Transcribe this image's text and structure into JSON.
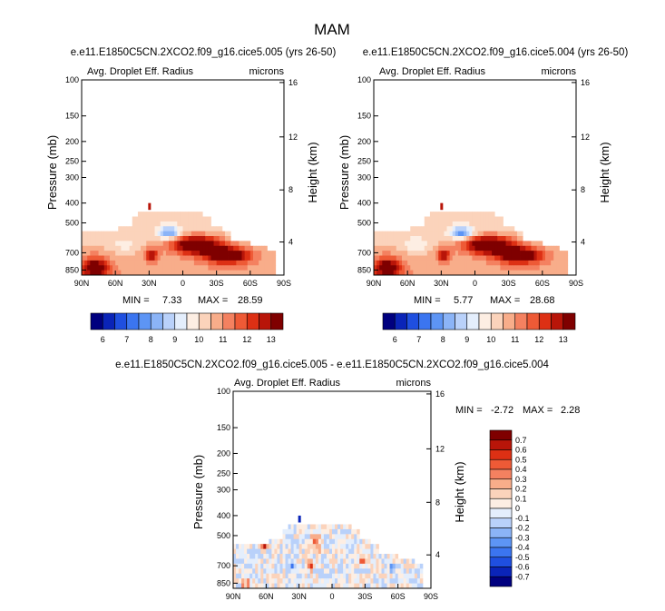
{
  "figure_title": "MAM",
  "colors": {
    "palette": [
      "#00007f",
      "#0a24b8",
      "#1f4fe0",
      "#3b75f0",
      "#5d95f5",
      "#8bb4f7",
      "#b9d1fa",
      "#e4eefc",
      "#fdeee3",
      "#fbd3bb",
      "#f8ad8a",
      "#f48160",
      "#ee5a36",
      "#dd3014",
      "#b81509",
      "#7f0000"
    ],
    "diff_palette": [
      "#00007f",
      "#0a24b8",
      "#1f4fe0",
      "#3b75f0",
      "#5d95f5",
      "#8bb4f7",
      "#b9d1fa",
      "#e4eefc",
      "#fdeee3",
      "#fbd3bb",
      "#f8ad8a",
      "#f48160",
      "#ee5a36",
      "#dd3014",
      "#b81509",
      "#7f0000"
    ]
  },
  "chart_data": [
    {
      "type": "heatmap",
      "title": "e.e11.E1850C5CN.2XCO2.f09_g16.cice5.005 (yrs 26-50)",
      "field_label": "Avg. Droplet Eff. Radius",
      "units": "microns",
      "ylabel": "Pressure (mb)",
      "ylabel_right": "Height (km)",
      "x_ticks": [
        "90N",
        "60N",
        "30N",
        "0",
        "30S",
        "60S",
        "90S"
      ],
      "y_ticks": [
        "100",
        "150",
        "200",
        "250",
        "300",
        "400",
        "500",
        "700",
        "850"
      ],
      "y_ticks_right": [
        "16",
        "12",
        "8",
        "4"
      ],
      "min_label": "MIN =",
      "min": "7.33",
      "max_label": "MAX =",
      "max": "28.59",
      "colorbar_labels": [
        "6",
        "7",
        "8",
        "9",
        "10",
        "11",
        "12",
        "13"
      ],
      "blobs": [
        {
          "lat": -12,
          "p": 640,
          "value": 13.6,
          "w": 22,
          "h": 0.1
        },
        {
          "lat": -40,
          "p": 720,
          "value": 13.2,
          "w": 20,
          "h": 0.09
        },
        {
          "lat": 78,
          "p": 830,
          "value": 12.6,
          "w": 12,
          "h": 0.12
        },
        {
          "lat": 28,
          "p": 720,
          "value": 12.0,
          "w": 6,
          "h": 0.07
        },
        {
          "lat": 12,
          "p": 560,
          "value": 7.0,
          "w": 10,
          "h": 0.07
        },
        {
          "lat": 52,
          "p": 640,
          "value": 8.8,
          "w": 12,
          "h": 0.08
        }
      ]
    },
    {
      "type": "heatmap",
      "title": "e.e11.E1850C5CN.2XCO2.f09_g16.cice5.004 (yrs 26-50)",
      "field_label": "Avg. Droplet Eff. Radius",
      "units": "microns",
      "ylabel": "Pressure (mb)",
      "ylabel_right": "Height (km)",
      "x_ticks": [
        "90N",
        "60N",
        "30N",
        "0",
        "30S",
        "60S",
        "90S"
      ],
      "y_ticks": [
        "100",
        "150",
        "200",
        "250",
        "300",
        "400",
        "500",
        "700",
        "850"
      ],
      "y_ticks_right": [
        "16",
        "12",
        "8",
        "4"
      ],
      "min_label": "MIN =",
      "min": "5.77",
      "max_label": "MAX =",
      "max": "28.68",
      "colorbar_labels": [
        "6",
        "7",
        "8",
        "9",
        "10",
        "11",
        "12",
        "13"
      ],
      "blobs": [
        {
          "lat": -12,
          "p": 640,
          "value": 13.6,
          "w": 22,
          "h": 0.1
        },
        {
          "lat": -40,
          "p": 720,
          "value": 13.2,
          "w": 20,
          "h": 0.09
        },
        {
          "lat": 78,
          "p": 830,
          "value": 12.6,
          "w": 12,
          "h": 0.12
        },
        {
          "lat": 28,
          "p": 720,
          "value": 12.0,
          "w": 6,
          "h": 0.07
        },
        {
          "lat": 12,
          "p": 560,
          "value": 6.8,
          "w": 10,
          "h": 0.07
        },
        {
          "lat": 52,
          "p": 640,
          "value": 8.6,
          "w": 12,
          "h": 0.08
        }
      ]
    },
    {
      "type": "heatmap",
      "title": "e.e11.E1850C5CN.2XCO2.f09_g16.cice5.005 - e.e11.E1850C5CN.2XCO2.f09_g16.cice5.004",
      "field_label": "Avg. Droplet Eff. Radius",
      "units": "microns",
      "ylabel": "Pressure (mb)",
      "ylabel_right": "Height (km)",
      "x_ticks": [
        "90N",
        "60N",
        "30N",
        "0",
        "30S",
        "60S",
        "90S"
      ],
      "y_ticks": [
        "100",
        "150",
        "200",
        "250",
        "300",
        "400",
        "500",
        "700",
        "850"
      ],
      "y_ticks_right": [
        "16",
        "12",
        "8",
        "4"
      ],
      "min_label": "MIN =",
      "min": "-2.72",
      "max_label": "MAX =",
      "max": "2.28",
      "colorbar_labels": [
        "0.7",
        "0.6",
        "0.5",
        "0.4",
        "0.3",
        "0.2",
        "0.1",
        "0",
        "-0.1",
        "-0.2",
        "-0.3",
        "-0.4",
        "-0.5",
        "-0.6",
        "-0.7"
      ],
      "blobs": [
        {
          "lat": 20,
          "p": 700,
          "value": 0.6,
          "w": 3,
          "h": 0.05
        },
        {
          "lat": 14,
          "p": 540,
          "value": 0.5,
          "w": 3,
          "h": 0.08
        },
        {
          "lat": 62,
          "p": 560,
          "value": 0.6,
          "w": 3,
          "h": 0.03
        },
        {
          "lat": 36,
          "p": 700,
          "value": -0.3,
          "w": 3,
          "h": 0.05
        },
        {
          "lat": -28,
          "p": 660,
          "value": 0.4,
          "w": 3,
          "h": 0.06
        },
        {
          "lat": -55,
          "p": 720,
          "value": -0.3,
          "w": 4,
          "h": 0.05
        },
        {
          "lat": 78,
          "p": 860,
          "value": 0.4,
          "w": 4,
          "h": 0.04
        }
      ]
    }
  ]
}
